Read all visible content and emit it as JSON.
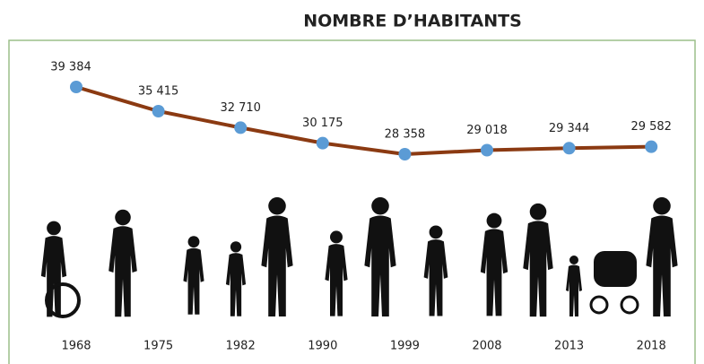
{
  "chart_data": {
    "type": "line",
    "title": "NOMBRE D’HABITANTS",
    "categories": [
      "1968",
      "1975",
      "1982",
      "1990",
      "1999",
      "2008",
      "2013",
      "2018"
    ],
    "series": [
      {
        "name": "Nombre d'habitants",
        "color": "#8b3a12",
        "marker_color": "#5b9bd5",
        "values": [
          39384,
          35415,
          32710,
          30175,
          28358,
          29018,
          29344,
          29582
        ],
        "value_labels": [
          "39 384",
          "35 415",
          "32 710",
          "30 175",
          "28 358",
          "29 018",
          "29 344",
          "29 582"
        ]
      }
    ]
  }
}
